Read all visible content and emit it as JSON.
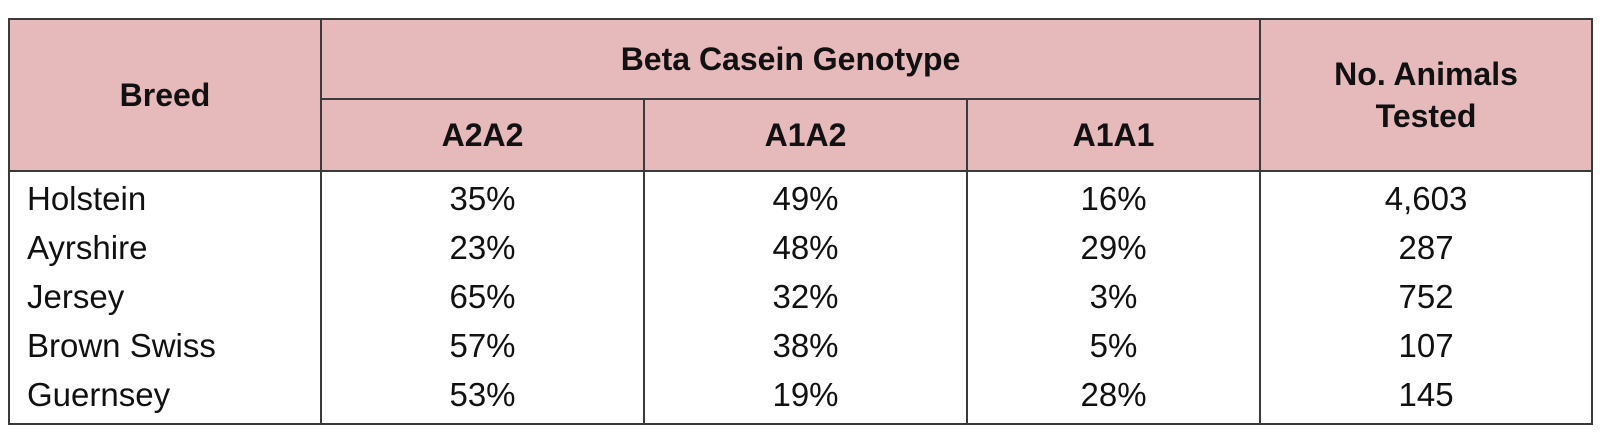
{
  "table": {
    "headers": {
      "breed": "Breed",
      "genotype_group": "Beta Casein Genotype",
      "genotypes": [
        "A2A2",
        "A1A2",
        "A1A1"
      ],
      "animals_tested_line1": "No. Animals",
      "animals_tested_line2": "Tested"
    },
    "rows": [
      {
        "breed": "Holstein",
        "a2a2": "35%",
        "a1a2": "49%",
        "a1a1": "16%",
        "tested": "4,603"
      },
      {
        "breed": "Ayrshire",
        "a2a2": "23%",
        "a1a2": "48%",
        "a1a1": "29%",
        "tested": "287"
      },
      {
        "breed": "Jersey",
        "a2a2": "65%",
        "a1a2": "32%",
        "a1a1": "3%",
        "tested": "752"
      },
      {
        "breed": "Brown Swiss",
        "a2a2": "57%",
        "a1a2": "38%",
        "a1a1": "5%",
        "tested": "107"
      },
      {
        "breed": "Guernsey",
        "a2a2": "53%",
        "a1a2": "19%",
        "a1a1": "28%",
        "tested": "145"
      }
    ],
    "colors": {
      "header_bg": "#e6b9bb",
      "border": "#3a3a3a"
    }
  }
}
